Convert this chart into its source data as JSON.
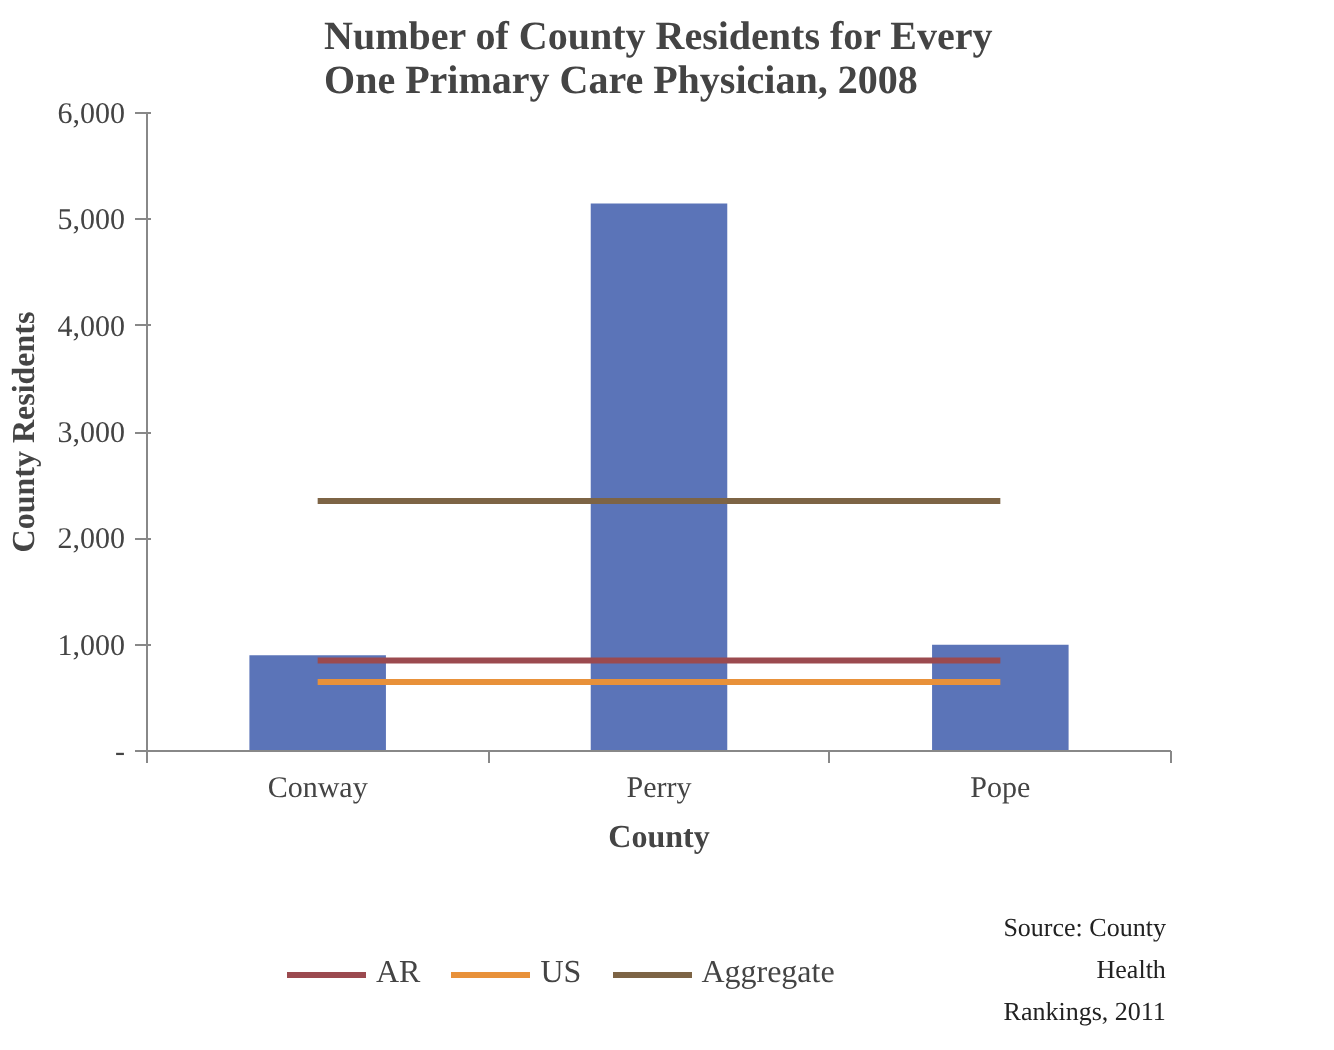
{
  "chart_data": {
    "type": "bar",
    "title": "Number of County Residents for Every\nOne Primary Care Physician, 2008",
    "xlabel": "County",
    "ylabel": "County Residents",
    "categories": [
      "Conway",
      "Perry",
      "Pope"
    ],
    "series": [
      {
        "name": null,
        "color": "#5b74b8",
        "values": [
          900,
          5150,
          1000
        ]
      },
      {
        "name": "AR",
        "type": "line",
        "color": "#9b4a4f",
        "values": [
          850,
          850,
          850
        ]
      },
      {
        "name": "US",
        "type": "line",
        "color": "#e8913a",
        "values": [
          650,
          650,
          650
        ]
      },
      {
        "name": "Aggregate",
        "type": "line",
        "color": "#7d6445",
        "values": [
          2350,
          2350,
          2350
        ]
      }
    ],
    "ylim": [
      0,
      6000
    ],
    "yticks": [
      {
        "value": 0,
        "label": "-"
      },
      {
        "value": 1000,
        "label": "1,000"
      },
      {
        "value": 2000,
        "label": "2,000"
      },
      {
        "value": 3000,
        "label": "3,000"
      },
      {
        "value": 4000,
        "label": "4,000"
      },
      {
        "value": 5000,
        "label": "5,000"
      },
      {
        "value": 6000,
        "label": "6,000"
      }
    ],
    "grid": false,
    "legend": "bottom",
    "annotations": [
      "Source: County\nHealth\nRankings, 2011"
    ]
  }
}
